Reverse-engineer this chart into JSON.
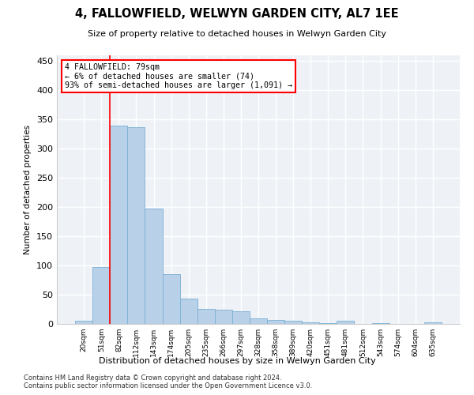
{
  "title": "4, FALLOWFIELD, WELWYN GARDEN CITY, AL7 1EE",
  "subtitle": "Size of property relative to detached houses in Welwyn Garden City",
  "xlabel": "Distribution of detached houses by size in Welwyn Garden City",
  "ylabel": "Number of detached properties",
  "bar_color": "#b8d0e8",
  "bar_edge_color": "#7aafd4",
  "categories": [
    "20sqm",
    "51sqm",
    "82sqm",
    "112sqm",
    "143sqm",
    "174sqm",
    "205sqm",
    "235sqm",
    "266sqm",
    "297sqm",
    "328sqm",
    "358sqm",
    "389sqm",
    "420sqm",
    "451sqm",
    "481sqm",
    "512sqm",
    "543sqm",
    "574sqm",
    "604sqm",
    "635sqm"
  ],
  "values": [
    5,
    97,
    340,
    337,
    197,
    85,
    43,
    26,
    24,
    22,
    9,
    7,
    5,
    3,
    2,
    5,
    0,
    2,
    0,
    0,
    3
  ],
  "ylim": [
    0,
    460
  ],
  "yticks": [
    0,
    50,
    100,
    150,
    200,
    250,
    300,
    350,
    400,
    450
  ],
  "vline_x": 1.5,
  "property_label": "4 FALLOWFIELD: 79sqm",
  "annotation_line1": "← 6% of detached houses are smaller (74)",
  "annotation_line2": "93% of semi-detached houses are larger (1,091) →",
  "background_color": "#eef2f7",
  "grid_color": "#ffffff",
  "fig_bg_color": "#ffffff",
  "footnote1": "Contains HM Land Registry data © Crown copyright and database right 2024.",
  "footnote2": "Contains public sector information licensed under the Open Government Licence v3.0."
}
